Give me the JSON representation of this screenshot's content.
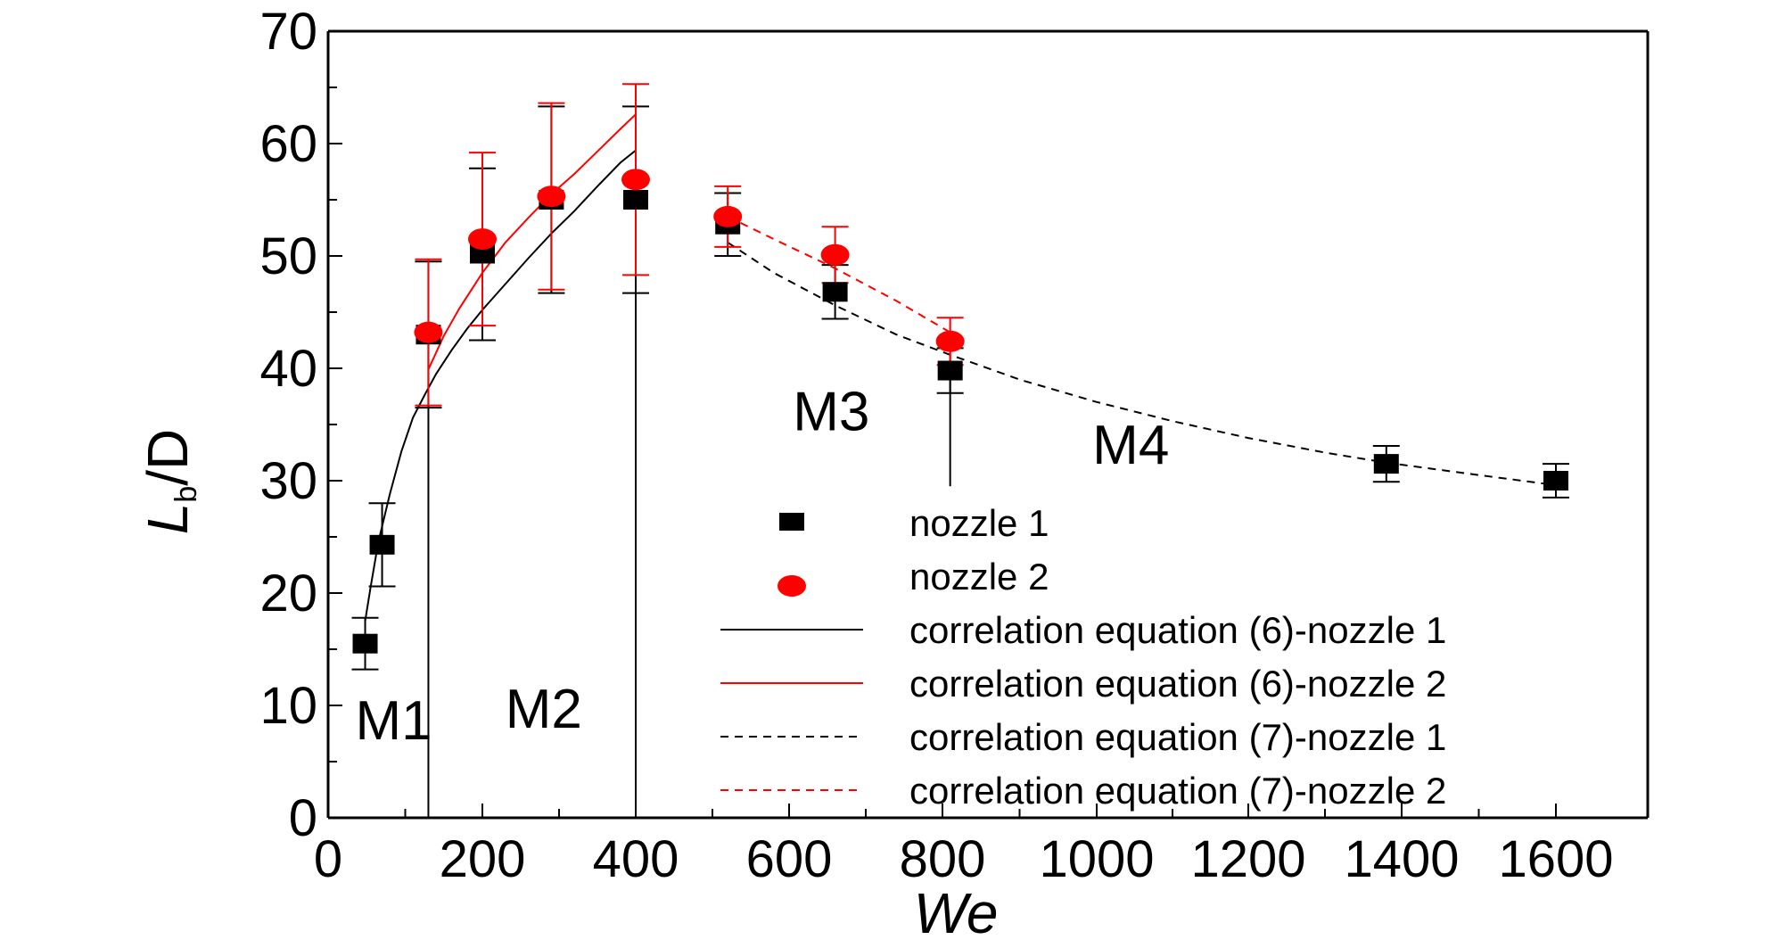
{
  "chart_data": {
    "type": "scatter",
    "xlabel": "We",
    "ylabel": {
      "main": "L",
      "sub": "b",
      "rest": "/D"
    },
    "xlim": [
      0,
      1700
    ],
    "ylim": [
      0,
      70
    ],
    "x_tick_labels": [
      {
        "label": "0",
        "value": 0
      },
      {
        "label": "200",
        "value": 200
      },
      {
        "label": "400",
        "value": 400
      },
      {
        "label": "600",
        "value": 600
      },
      {
        "label": "800",
        "value": 800
      },
      {
        "label": "1000",
        "value": 1000
      },
      {
        "label": "1200",
        "value": 1200
      },
      {
        "label": "1400",
        "value": 1400
      },
      {
        "label": "1600",
        "value": 1600
      }
    ],
    "y_tick_labels": [
      {
        "label": "0",
        "value": 0
      },
      {
        "label": "10",
        "value": 10
      },
      {
        "label": "20",
        "value": 20
      },
      {
        "label": "30",
        "value": 30
      },
      {
        "label": "40",
        "value": 40
      },
      {
        "label": "50",
        "value": 50
      },
      {
        "label": "60",
        "value": 60
      },
      {
        "label": "70",
        "value": 70
      }
    ],
    "grid": false,
    "legend_position": "lower-right",
    "series": [
      {
        "name": "nozzle 1",
        "kind": "scatter",
        "marker": "square",
        "color": "#000000",
        "points": [
          {
            "x": 48,
            "y": 15.5,
            "err_low": 13.2,
            "err_high": 17.8
          },
          {
            "x": 70,
            "y": 24.3,
            "err_low": 20.6,
            "err_high": 28.0
          },
          {
            "x": 130,
            "y": 43.0,
            "err_low": 36.5,
            "err_high": 49.5
          },
          {
            "x": 200,
            "y": 50.2,
            "err_low": 42.5,
            "err_high": 57.8
          },
          {
            "x": 290,
            "y": 55.0,
            "err_low": 46.7,
            "err_high": 63.3
          },
          {
            "x": 400,
            "y": 55.0,
            "err_low": 46.7,
            "err_high": 63.3
          },
          {
            "x": 520,
            "y": 52.8,
            "err_low": 50.0,
            "err_high": 55.6
          },
          {
            "x": 660,
            "y": 46.8,
            "err_low": 44.4,
            "err_high": 49.2
          },
          {
            "x": 810,
            "y": 39.8,
            "err_low": 37.8,
            "err_high": 41.8
          },
          {
            "x": 1380,
            "y": 31.5,
            "err_low": 29.9,
            "err_high": 33.1
          },
          {
            "x": 1600,
            "y": 30.0,
            "err_low": 28.5,
            "err_high": 31.5
          }
        ]
      },
      {
        "name": "nozzle 2",
        "kind": "scatter",
        "marker": "ellipse",
        "color": "#ff0000",
        "points": [
          {
            "x": 130,
            "y": 43.2,
            "err_low": 36.7,
            "err_high": 49.7
          },
          {
            "x": 200,
            "y": 51.5,
            "err_low": 43.8,
            "err_high": 59.2
          },
          {
            "x": 290,
            "y": 55.3,
            "err_low": 47.0,
            "err_high": 63.6
          },
          {
            "x": 400,
            "y": 56.8,
            "err_low": 48.3,
            "err_high": 65.3
          },
          {
            "x": 520,
            "y": 53.5,
            "err_low": 50.8,
            "err_high": 56.2
          },
          {
            "x": 660,
            "y": 50.1,
            "err_low": 47.6,
            "err_high": 52.6
          },
          {
            "x": 810,
            "y": 42.4,
            "err_low": 40.3,
            "err_high": 44.5
          }
        ]
      },
      {
        "name": "correlation equation (6)-nozzle 1",
        "kind": "line",
        "dash": "solid",
        "color": "#000000",
        "points": [
          [
            48,
            17.5
          ],
          [
            55,
            20.5
          ],
          [
            65,
            24.5
          ],
          [
            80,
            28.8
          ],
          [
            95,
            32.6
          ],
          [
            110,
            35.6
          ],
          [
            125,
            37.6
          ],
          [
            140,
            39.5
          ],
          [
            160,
            41.6
          ],
          [
            180,
            43.5
          ],
          [
            200,
            45.2
          ],
          [
            230,
            47.5
          ],
          [
            260,
            49.8
          ],
          [
            290,
            52.0
          ],
          [
            320,
            54.0
          ],
          [
            350,
            56.2
          ],
          [
            380,
            58.3
          ],
          [
            400,
            59.4
          ]
        ]
      },
      {
        "name": "correlation equation (6)-nozzle 2",
        "kind": "line",
        "dash": "solid",
        "color": "#ff0000",
        "points": [
          [
            130,
            39.9
          ],
          [
            150,
            42.9
          ],
          [
            170,
            45.3
          ],
          [
            200,
            48.5
          ],
          [
            230,
            51.2
          ],
          [
            260,
            53.4
          ],
          [
            290,
            55.5
          ],
          [
            320,
            57.3
          ],
          [
            350,
            59.3
          ],
          [
            380,
            61.3
          ],
          [
            400,
            62.6
          ]
        ]
      },
      {
        "name": "correlation equation (7)-nozzle 1",
        "kind": "line",
        "dash": "dashed",
        "color": "#000000",
        "points": [
          [
            520,
            51.2
          ],
          [
            580,
            48.5
          ],
          [
            660,
            45.6
          ],
          [
            740,
            43.0
          ],
          [
            810,
            41.2
          ],
          [
            900,
            39.0
          ],
          [
            1000,
            37.0
          ],
          [
            1100,
            35.3
          ],
          [
            1200,
            33.8
          ],
          [
            1300,
            32.5
          ],
          [
            1380,
            31.6
          ],
          [
            1500,
            30.5
          ],
          [
            1600,
            29.6
          ]
        ]
      },
      {
        "name": "correlation equation (7)-nozzle 2",
        "kind": "line",
        "dash": "dashed",
        "color": "#ff0000",
        "points": [
          [
            520,
            53.5
          ],
          [
            580,
            51.5
          ],
          [
            660,
            48.9
          ],
          [
            740,
            46.0
          ],
          [
            810,
            43.2
          ]
        ]
      }
    ],
    "regions": [
      {
        "label": "M1",
        "x": 85,
        "y": 7
      },
      {
        "label": "M2",
        "x": 280,
        "y": 8
      },
      {
        "label": "M3",
        "x": 655,
        "y": 34.5
      },
      {
        "label": "M4",
        "x": 1045,
        "y": 31.5
      }
    ],
    "boundaries": [
      {
        "x": 130,
        "y_from": 0,
        "y_to": 43.0
      },
      {
        "x": 400,
        "y_from": 0,
        "y_to": 55.0
      },
      {
        "x": 810,
        "y_from": 29.5,
        "y_to": 39.8
      }
    ]
  }
}
